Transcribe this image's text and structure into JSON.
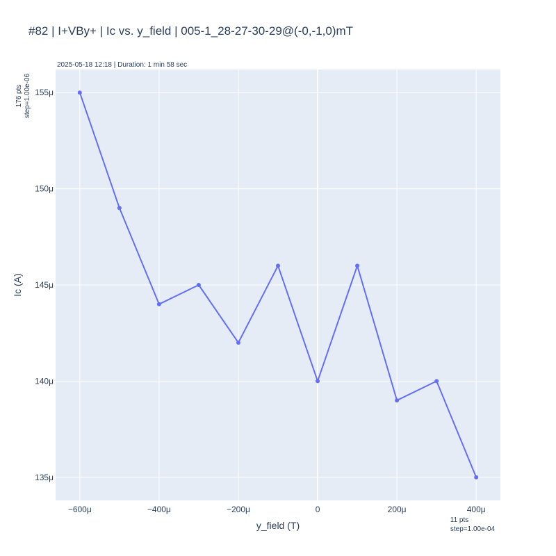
{
  "chart_data": {
    "type": "line",
    "title": "#82 | I+VBy+ | Ic vs. y_field | 005-1_28-27-30-29@(-0,-1,0)mT",
    "subtitle": "2025-05-18 12:18 | Duration: 1 min 58 sec",
    "xlabel": "y_field (T)",
    "ylabel": "Ic (A)",
    "x_note": [
      "11 pts",
      "step=1.00e-04"
    ],
    "y_note": [
      "176 pts",
      "step=1.00e-06"
    ],
    "x": [
      -0.0006,
      -0.0005,
      -0.0004,
      -0.0003,
      -0.0002,
      -0.0001,
      0,
      0.0001,
      0.0002,
      0.0003,
      0.0004
    ],
    "series": [
      {
        "values": [
          0.000155,
          0.000149,
          0.000144,
          0.000145,
          0.000142,
          0.000146,
          0.00014,
          0.000146,
          0.000139,
          0.00014,
          0.000135
        ]
      }
    ],
    "x_ticks": [
      -0.0006,
      -0.0004,
      -0.0002,
      0,
      0.0002,
      0.0004
    ],
    "x_tick_labels": [
      "−600μ",
      "−400μ",
      "−200μ",
      "0",
      "200μ",
      "400μ"
    ],
    "y_ticks": [
      0.000135,
      0.00014,
      0.000145,
      0.00015,
      0.000155
    ],
    "y_tick_labels": [
      "135μ",
      "140μ",
      "145μ",
      "150μ",
      "155μ"
    ],
    "xlim": [
      -0.000661,
      0.000461
    ],
    "ylim": [
      0.0001338,
      0.0001562
    ],
    "grid": true,
    "colors": {
      "line": "#636efa",
      "plot_bg": "#e5ecf6"
    }
  }
}
